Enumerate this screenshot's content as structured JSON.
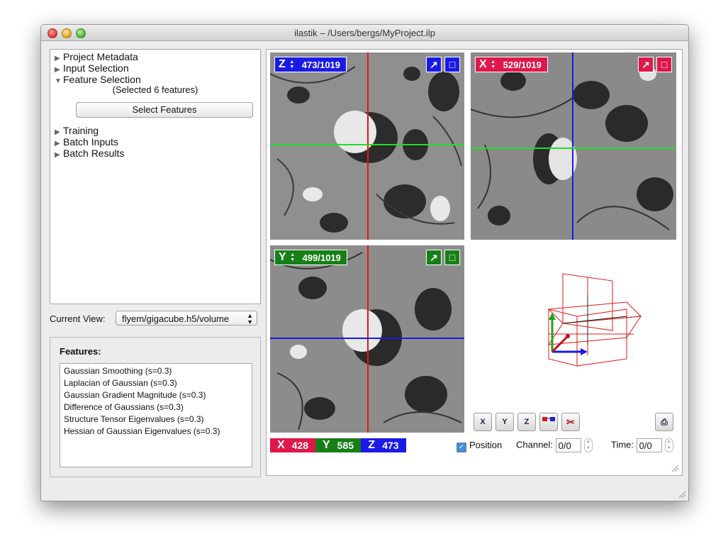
{
  "window": {
    "title": "ilastik – /Users/bergs/MyProject.ilp"
  },
  "tree": {
    "items": [
      {
        "label": "Project Metadata",
        "expanded": false
      },
      {
        "label": "Input Selection",
        "expanded": false
      },
      {
        "label": "Feature Selection",
        "expanded": true
      },
      {
        "label": "Training",
        "expanded": false
      },
      {
        "label": "Batch Inputs",
        "expanded": false
      },
      {
        "label": "Batch Results",
        "expanded": false
      }
    ],
    "selected_info": "(Selected 6 features)",
    "select_button": "Select Features"
  },
  "current_view": {
    "label": "Current View:",
    "value": "flyem/gigacube.h5/volume"
  },
  "features": {
    "title": "Features:",
    "items": [
      "Gaussian Smoothing (s=0.3)",
      "Laplacian of Gaussian (s=0.3)",
      "Gaussian Gradient Magnitude (s=0.3)",
      "Difference of Gaussians (s=0.3)",
      "Structure Tensor Eigenvalues (s=0.3)",
      "Hessian of Gaussian Eigenvalues (s=0.3)"
    ]
  },
  "views": {
    "z": {
      "axis": "Z",
      "slice": "473/1019",
      "color": "#1a1ae6"
    },
    "x": {
      "axis": "X",
      "slice": "529/1019",
      "color": "#e0174a"
    },
    "y": {
      "axis": "Y",
      "slice": "499/1019",
      "color": "#168016"
    }
  },
  "view3d_toolbar": {
    "x_label": "X",
    "y_label": "Y",
    "z_label": "Z"
  },
  "position": {
    "x_label": "X",
    "x": "428",
    "y_label": "Y",
    "y": "585",
    "z_label": "Z",
    "z": "473"
  },
  "controls": {
    "position_label": "Position",
    "position_checked": true,
    "channel_label": "Channel:",
    "channel_value": "0/0",
    "time_label": "Time:",
    "time_value": "0/0"
  },
  "colors": {
    "red": "#e0174a",
    "green": "#168016",
    "blue": "#1a1ae6",
    "crosshair_green": "#22e022"
  }
}
